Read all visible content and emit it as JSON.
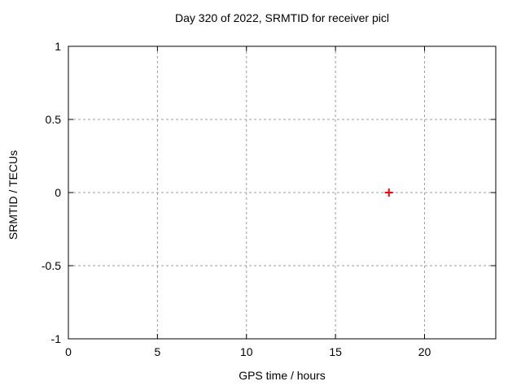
{
  "chart_data": {
    "type": "scatter",
    "title": "Day 320 of 2022, SRMTID for receiver picl",
    "xlabel": "GPS time / hours",
    "ylabel": "SRMTID / TECUs",
    "xlim": [
      0,
      24
    ],
    "ylim": [
      -1,
      1
    ],
    "xticks": {
      "values": [
        0,
        5,
        10,
        15,
        20
      ],
      "labels": [
        "0",
        "5",
        "10",
        "15",
        "20"
      ]
    },
    "yticks": {
      "values": [
        1,
        0.5,
        0,
        -0.5,
        -1
      ],
      "labels": [
        "1",
        "0.5",
        "0",
        "-0.5",
        "-1"
      ]
    },
    "grid": true,
    "legend": "none",
    "series": [
      {
        "marker": "plus",
        "color": "#ff0000",
        "points": [
          {
            "x": 18.0,
            "y": 0.0
          }
        ]
      }
    ],
    "colors": {
      "background": "#ffffff",
      "border": "#000000",
      "grid": "#9e9e9e",
      "text": "#000000"
    }
  }
}
